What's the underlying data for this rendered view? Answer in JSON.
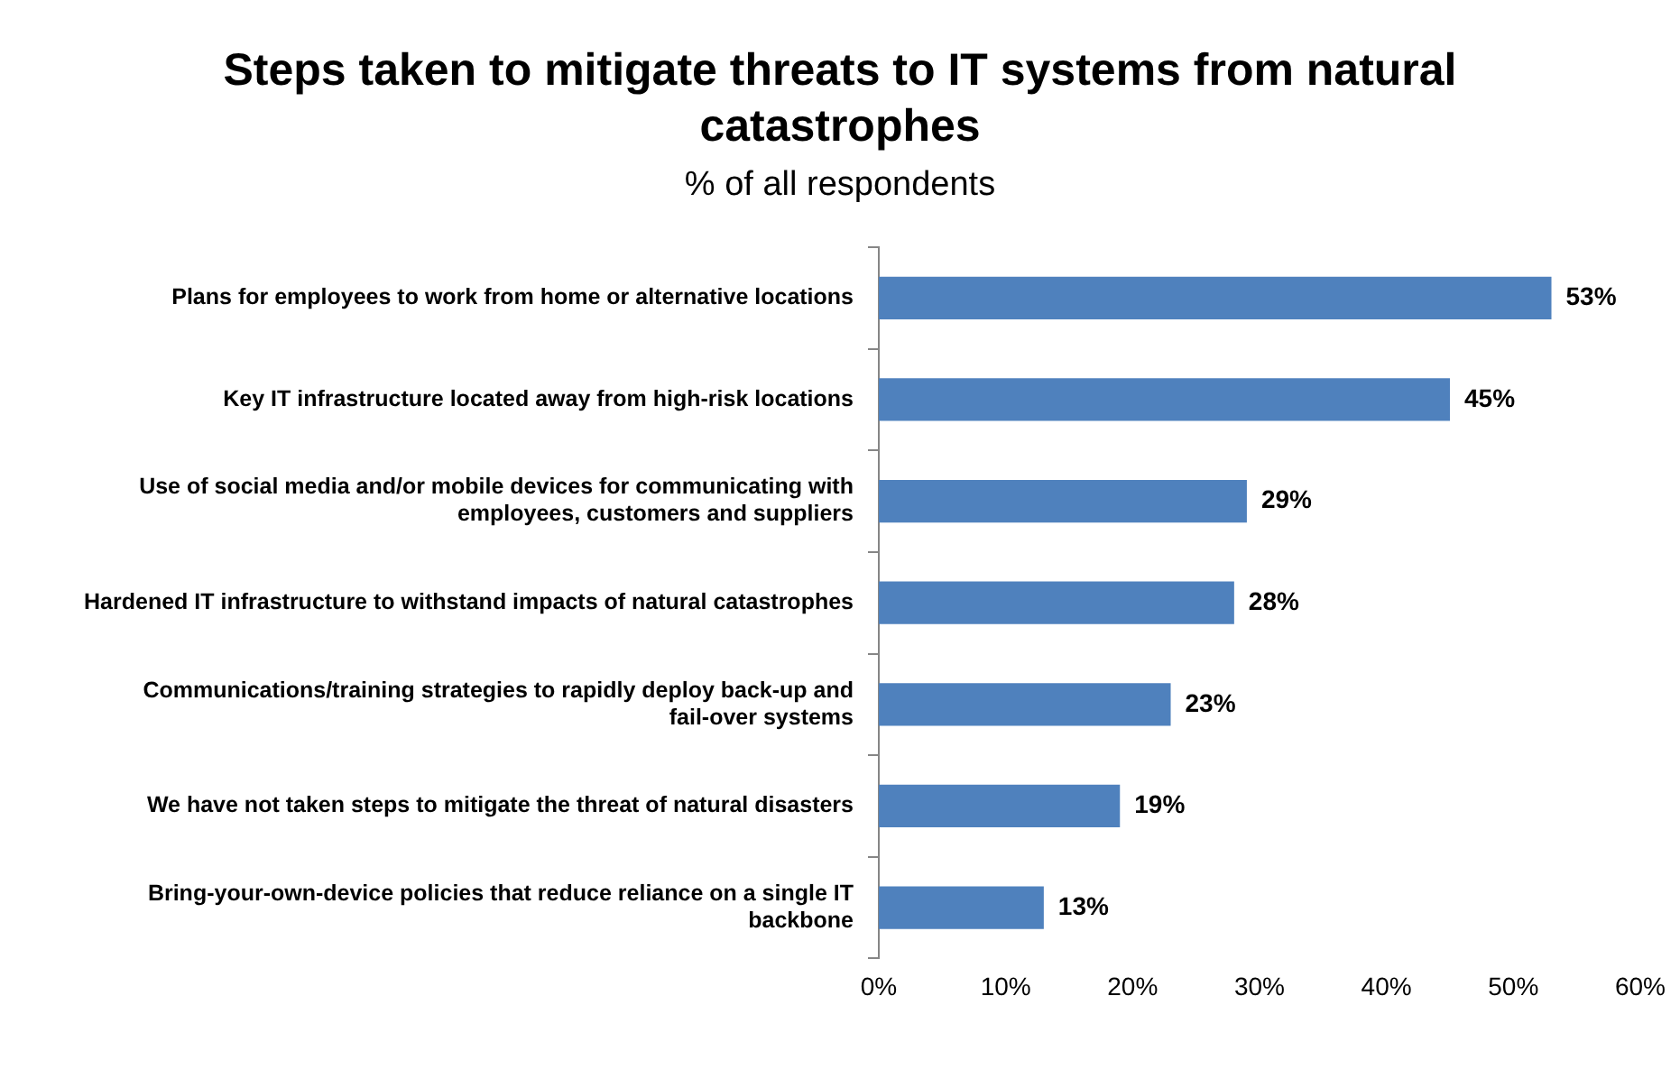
{
  "chart_data": {
    "type": "bar",
    "orientation": "horizontal",
    "title": "Steps taken to mitigate threats to IT systems from natural catastrophes",
    "subtitle": "% of all respondents",
    "categories": [
      "Plans for employees to work from home or alternative locations",
      "Key IT infrastructure located away from high-risk locations",
      "Use of social media and/or mobile devices for communicating with employees, customers and suppliers",
      "Hardened IT infrastructure to withstand impacts of natural catastrophes",
      "Communications/training strategies to rapidly deploy back-up and fail-over systems",
      "We have not taken steps to mitigate the threat of natural disasters",
      "Bring-your-own-device policies that reduce reliance on a single IT backbone"
    ],
    "values": [
      53,
      45,
      29,
      28,
      23,
      19,
      13
    ],
    "value_labels": [
      "53%",
      "45%",
      "29%",
      "28%",
      "23%",
      "19%",
      "13%"
    ],
    "color": "#4f81bd",
    "xlim": [
      0,
      60
    ],
    "xticks": [
      {
        "value": 0,
        "label": "0%"
      },
      {
        "value": 10,
        "label": "10%"
      },
      {
        "value": 20,
        "label": "20%"
      },
      {
        "value": 30,
        "label": "30%"
      },
      {
        "value": 40,
        "label": "40%"
      },
      {
        "value": 50,
        "label": "50%"
      },
      {
        "value": 60,
        "label": "60%"
      }
    ]
  }
}
